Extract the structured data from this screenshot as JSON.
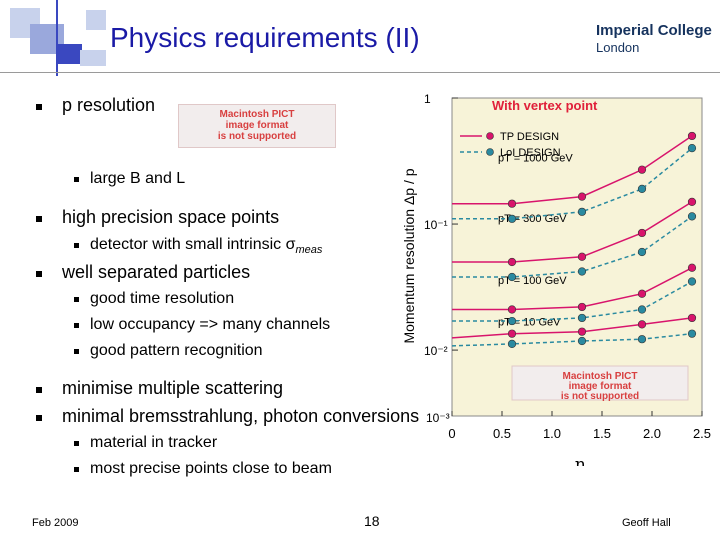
{
  "header": {
    "title": "Physics requirements (II)",
    "logo_line1": "Imperial College",
    "logo_line2": "London"
  },
  "bullets": [
    {
      "text": "p resolution"
    },
    {
      "text": "large B and L"
    },
    {
      "text": "high precision space points"
    },
    {
      "text": "detector with small intrinsic σ",
      "sub": "meas"
    },
    {
      "text": "well separated particles"
    },
    {
      "text": "good time resolution"
    },
    {
      "text": "low occupancy => many channels"
    },
    {
      "text": "good pattern recognition"
    },
    {
      "text": "minimise multiple scattering"
    },
    {
      "text": "minimal bremsstrahlung, photon conversions"
    },
    {
      "text": "material in tracker"
    },
    {
      "text": "most precise points close to beam"
    }
  ],
  "placeholder_image": {
    "line1": "Macintosh PICT",
    "line2": "image format",
    "line3": "is not supported"
  },
  "footer": {
    "date": "Feb 2009",
    "page": "18",
    "author": "Geoff Hall"
  },
  "colors": {
    "title": "#1a1aa6",
    "tp_design": "#d8146c",
    "loi_design": "#2a8aa0",
    "chart_bg": "#f7f3d8",
    "chart_title": "#e0203a"
  },
  "chart_data": {
    "type": "line",
    "title": "With vertex point",
    "xlabel": "η",
    "ylabel": "Momentum resolution  Δp / p",
    "xlim": [
      0,
      2.5
    ],
    "ylim": [
      0.003,
      1
    ],
    "yscale": "log",
    "x_ticks": [
      "0",
      "0.5",
      "1.0",
      "1.5",
      "2.0",
      "2.5"
    ],
    "y_ticks": [
      {
        "value": 1,
        "label": "1"
      },
      {
        "value": 0.1,
        "label": "10⁻¹"
      },
      {
        "value": 0.01,
        "label": "10⁻²"
      },
      {
        "value": 0.001,
        "label": "10⁻³"
      }
    ],
    "legend": [
      "TP DESIGN",
      "LoI DESIGN"
    ],
    "legend_position": "top-right",
    "x": [
      0,
      0.6,
      1.3,
      1.9,
      2.4
    ],
    "series": [
      {
        "name": "TP DESIGN",
        "group": "pT = 1000 GeV",
        "values": [
          0.145,
          0.145,
          0.165,
          0.27,
          0.5
        ]
      },
      {
        "name": "LoI DESIGN",
        "group": "pT = 1000 GeV",
        "values": [
          0.11,
          0.11,
          0.125,
          0.19,
          0.4
        ]
      },
      {
        "name": "TP DESIGN",
        "group": "pT = 300 GeV",
        "values": [
          0.05,
          0.05,
          0.055,
          0.085,
          0.15
        ]
      },
      {
        "name": "LoI DESIGN",
        "group": "pT = 300 GeV",
        "values": [
          0.038,
          0.038,
          0.042,
          0.06,
          0.115
        ]
      },
      {
        "name": "TP DESIGN",
        "group": "pT = 100 GeV",
        "values": [
          0.021,
          0.021,
          0.022,
          0.028,
          0.045
        ]
      },
      {
        "name": "LoI DESIGN",
        "group": "pT = 100 GeV",
        "values": [
          0.017,
          0.017,
          0.018,
          0.021,
          0.035
        ]
      },
      {
        "name": "TP DESIGN",
        "group": "pT = 10 GeV",
        "values": [
          0.0125,
          0.0135,
          0.014,
          0.016,
          0.018
        ]
      },
      {
        "name": "LoI DESIGN",
        "group": "pT = 10 GeV",
        "values": [
          0.0108,
          0.0112,
          0.0118,
          0.0122,
          0.0135
        ]
      }
    ],
    "annotations": [
      "pT = 1000 GeV",
      "pT = 300 GeV",
      "pT = 100 GeV",
      "pT = 10 GeV"
    ]
  }
}
